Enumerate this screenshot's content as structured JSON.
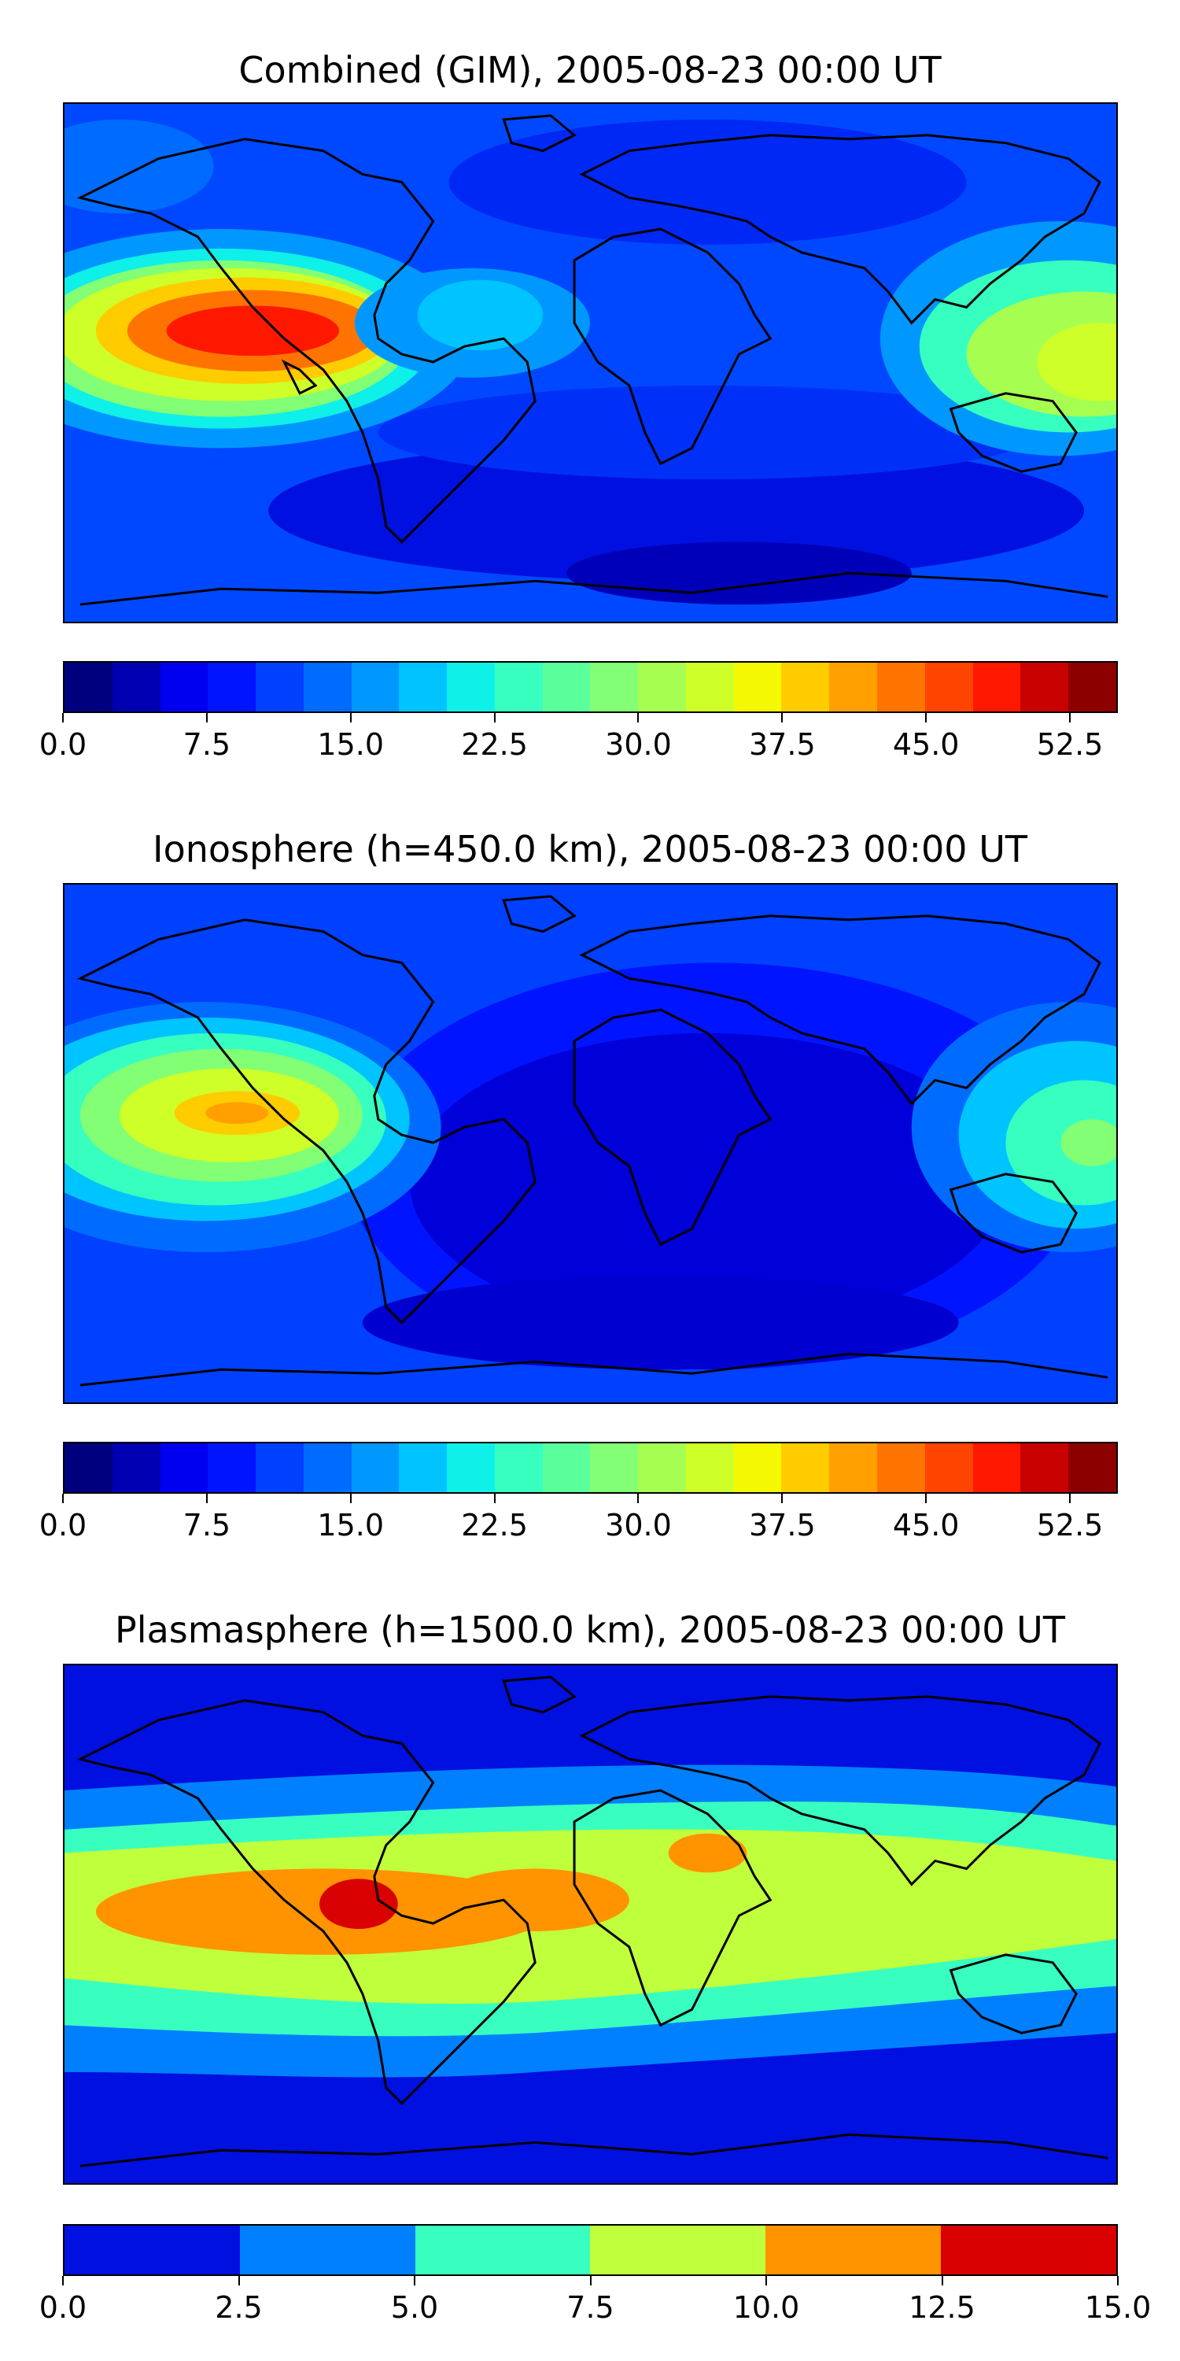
{
  "panels": [
    {
      "title": "Combined (GIM), 2005-08-23 00:00 UT",
      "colorbar": {
        "min": 0.0,
        "max": 55.0,
        "tick_labels": [
          "0.0",
          "7.5",
          "15.0",
          "22.5",
          "30.0",
          "37.5",
          "45.0",
          "52.5"
        ],
        "colors": [
          "#00007f",
          "#0000b2",
          "#0000f0",
          "#0014ff",
          "#0040ff",
          "#006cff",
          "#0098ff",
          "#00c4ff",
          "#0ef0e8",
          "#36ffc0",
          "#5aff9c",
          "#82ff74",
          "#a6ff50",
          "#ceff28",
          "#f4f800",
          "#ffcc00",
          "#ffa000",
          "#ff7400",
          "#ff4400",
          "#ff1800",
          "#c80000",
          "#8c0000"
        ]
      }
    },
    {
      "title": "Ionosphere  (h=450.0 km), 2005-08-23 00:00 UT",
      "colorbar": {
        "min": 0.0,
        "max": 55.0,
        "tick_labels": [
          "0.0",
          "7.5",
          "15.0",
          "22.5",
          "30.0",
          "37.5",
          "45.0",
          "52.5"
        ],
        "colors": [
          "#00007f",
          "#0000b2",
          "#0000f0",
          "#0014ff",
          "#0040ff",
          "#006cff",
          "#0098ff",
          "#00c4ff",
          "#0ef0e8",
          "#36ffc0",
          "#5aff9c",
          "#82ff74",
          "#a6ff50",
          "#ceff28",
          "#f4f800",
          "#ffcc00",
          "#ffa000",
          "#ff7400",
          "#ff4400",
          "#ff1800",
          "#c80000",
          "#8c0000"
        ]
      }
    },
    {
      "title": "Plasmasphere (h=1500.0 km), 2005-08-23 00:00 UT",
      "colorbar": {
        "min": 0.0,
        "max": 15.0,
        "tick_labels": [
          "0.0",
          "2.5",
          "5.0",
          "7.5",
          "10.0",
          "12.5",
          "15.0"
        ],
        "colors": [
          "#0010e0",
          "#0080ff",
          "#38ffc0",
          "#c0ff3c",
          "#ff9400",
          "#d80000"
        ]
      }
    }
  ],
  "map_style": {
    "background": "#0040ff",
    "coastline_color": "#000000"
  }
}
